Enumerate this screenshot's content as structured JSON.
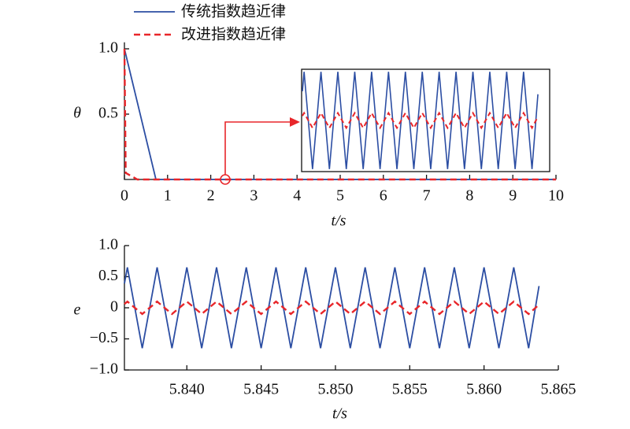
{
  "chart_data": [
    {
      "type": "line",
      "xlabel": "t/s",
      "ylabel": "θ",
      "xlim": [
        0,
        10
      ],
      "ylim": [
        0,
        1.05
      ],
      "xticks": [
        0,
        1,
        2,
        3,
        4,
        5,
        6,
        7,
        8,
        9,
        10
      ],
      "yticks": [
        0.5,
        {
          "value": 1,
          "label": "1.0"
        }
      ],
      "series": [
        {
          "name": "传统指数趋近律",
          "color": "#2c4ea3",
          "dash": false,
          "x": [
            0,
            0.73,
            10
          ],
          "values": [
            1,
            0,
            0
          ]
        },
        {
          "name": "改进指数趋近律",
          "color": "#e8262a",
          "dash": true,
          "x": [
            0,
            0.03,
            0.3,
            10
          ],
          "values": [
            1,
            0.05,
            0,
            0
          ]
        }
      ]
    },
    {
      "type": "line",
      "xlabel": "t/s",
      "ylabel": "e",
      "xlim": [
        5.8358,
        5.865
      ],
      "ylim": [
        -1,
        1
      ],
      "xticks": [
        {
          "value": 5.84,
          "label": "5.840"
        },
        {
          "value": 5.845,
          "label": "5.845"
        },
        {
          "value": 5.85,
          "label": "5.850"
        },
        {
          "value": 5.855,
          "label": "5.855"
        },
        {
          "value": 5.86,
          "label": "5.860"
        },
        {
          "value": 5.865,
          "label": "5.865"
        }
      ],
      "yticks": [
        {
          "value": -1,
          "label": "−1.0"
        },
        {
          "value": -0.5,
          "label": "−0.5"
        },
        0,
        0.5,
        {
          "value": 1,
          "label": "1.0"
        }
      ],
      "x": [
        5.8358,
        5.836,
        5.837,
        5.838,
        5.839,
        5.84,
        5.841,
        5.842,
        5.843,
        5.844,
        5.845,
        5.846,
        5.847,
        5.848,
        5.849,
        5.85,
        5.851,
        5.852,
        5.853,
        5.854,
        5.855,
        5.856,
        5.857,
        5.858,
        5.859,
        5.86,
        5.861,
        5.862,
        5.863,
        5.8637
      ],
      "series": [
        {
          "color": "#2c4ea3",
          "dash": false,
          "values": [
            0.39,
            0.65,
            -0.65,
            0.65,
            -0.65,
            0.65,
            -0.65,
            0.65,
            -0.65,
            0.65,
            -0.65,
            0.65,
            -0.65,
            0.65,
            -0.65,
            0.65,
            -0.65,
            0.65,
            -0.65,
            0.65,
            -0.65,
            0.65,
            -0.65,
            0.65,
            -0.65,
            0.65,
            -0.65,
            0.65,
            -0.65,
            0.35
          ]
        },
        {
          "color": "#e8262a",
          "dash": true,
          "values": [
            0.06,
            0.1,
            -0.1,
            0.1,
            -0.1,
            0.1,
            -0.1,
            0.1,
            -0.1,
            0.1,
            -0.1,
            0.1,
            -0.1,
            0.1,
            -0.1,
            0.1,
            -0.1,
            0.1,
            -0.1,
            0.1,
            -0.1,
            0.1,
            -0.1,
            0.1,
            -0.1,
            0.1,
            -0.1,
            0.1,
            -0.1,
            0.05
          ]
        }
      ]
    }
  ]
}
